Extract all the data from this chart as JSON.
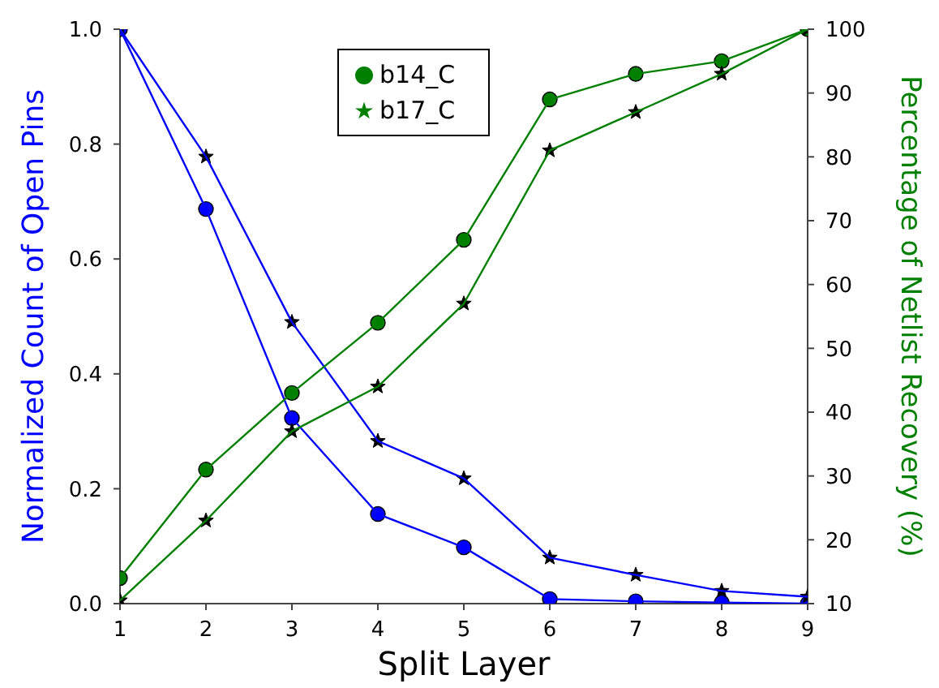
{
  "chart_data": {
    "type": "line",
    "xlabel": "Split Layer",
    "ylabel": "Normalized Count of Open Pins",
    "y2label": "Percentage of Netlist Recovery (%)",
    "x": [
      1,
      2,
      3,
      4,
      5,
      6,
      7,
      8,
      9
    ],
    "xlim": [
      1,
      9
    ],
    "xticks": [
      1,
      2,
      3,
      4,
      5,
      6,
      7,
      8,
      9
    ],
    "ylim": [
      0,
      1
    ],
    "yticks": [
      {
        "value": 0,
        "label": "0.0"
      },
      {
        "value": 0.2,
        "label": "0.2"
      },
      {
        "value": 0.4,
        "label": "0.4"
      },
      {
        "value": 0.6,
        "label": "0.6"
      },
      {
        "value": 0.8,
        "label": "0.8"
      },
      {
        "value": 1,
        "label": "1.0"
      }
    ],
    "y2lim": [
      10,
      100
    ],
    "y2ticks": [
      10,
      20,
      30,
      40,
      50,
      60,
      70,
      80,
      90,
      100
    ],
    "grid": false,
    "legend": "top",
    "series": [
      {
        "color": "#0000ff",
        "marker": "circle",
        "values": [
          1,
          0.687,
          0.323,
          0.156,
          0.098,
          0.008,
          0.004,
          0.002,
          0.0
        ]
      },
      {
        "color": "#0000ff",
        "marker": "star",
        "values": [
          1,
          0.778,
          0.49,
          0.283,
          0.218,
          0.08,
          0.05,
          0.022,
          0.012
        ]
      },
      {
        "name": "b14_C",
        "color": "#008000",
        "marker": "circle",
        "axis": "y2",
        "values": [
          14,
          31,
          43,
          54,
          67,
          89,
          93,
          95,
          100
        ]
      },
      {
        "name": "b17_C",
        "color": "#008000",
        "marker": "star",
        "axis": "y2",
        "values": [
          10.5,
          23,
          37,
          44,
          57,
          81,
          87,
          93,
          100
        ]
      }
    ]
  }
}
